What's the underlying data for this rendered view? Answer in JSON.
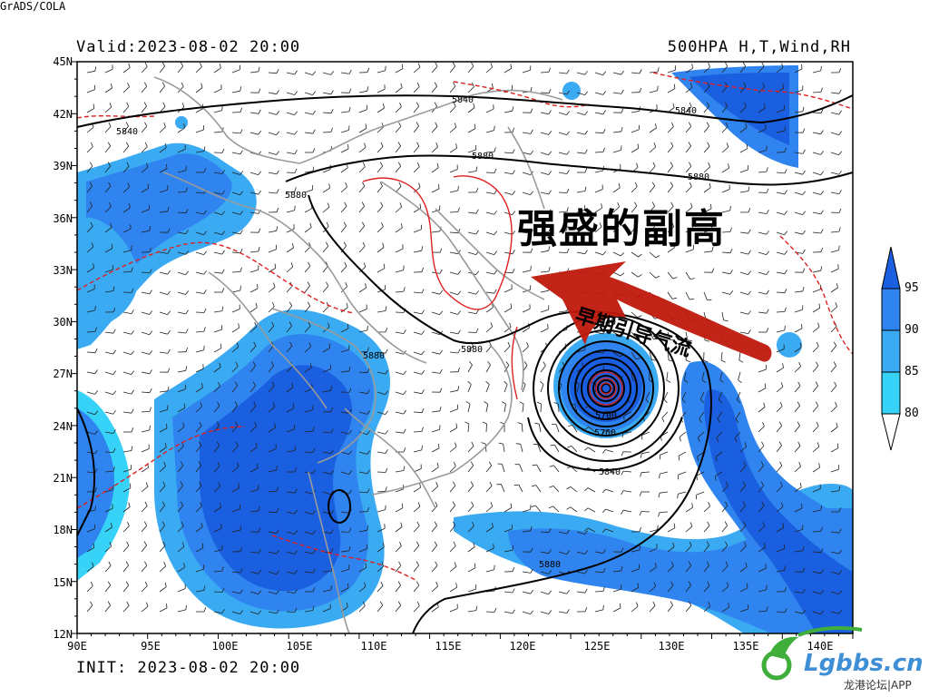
{
  "header": {
    "valid": "Valid:2023-08-02 20:00",
    "product": "500HPA H,T,Wind,RH",
    "init": "INIT: 2023-08-02 20:00",
    "software": "GrADS/COLA"
  },
  "axes": {
    "lon_labels": [
      "90E",
      "95E",
      "100E",
      "105E",
      "110E",
      "115E",
      "120E",
      "125E",
      "130E",
      "135E",
      "140E"
    ],
    "lat_labels": [
      "45N",
      "42N",
      "39N",
      "36N",
      "33N",
      "30N",
      "27N",
      "24N",
      "21N",
      "18N",
      "15N",
      "12N"
    ]
  },
  "colorbar": {
    "labels": [
      "95",
      "90",
      "85",
      "80"
    ],
    "colors": [
      "#1a5fe0",
      "#2f84f0",
      "#3aaaf2",
      "#36d2f8"
    ]
  },
  "contours": {
    "labels": [
      "5840",
      "5840",
      "5840",
      "5880",
      "5880",
      "5880",
      "5880",
      "5880",
      "5840",
      "5840",
      "5760",
      "5700",
      "5880"
    ]
  },
  "annotations": {
    "main": "强盛的副高",
    "arrow": "早期引导气流"
  },
  "logo": {
    "text": "Lgbbs.cn",
    "sub": "龙港论坛|APP"
  },
  "colors": {
    "height_contour": "#000000",
    "temperature_contour": "#e02020",
    "border": "#9a9a9a",
    "arrow": "#c0180c",
    "logo_green": "#3fae3a",
    "logo_blue": "#3f8fd6"
  }
}
